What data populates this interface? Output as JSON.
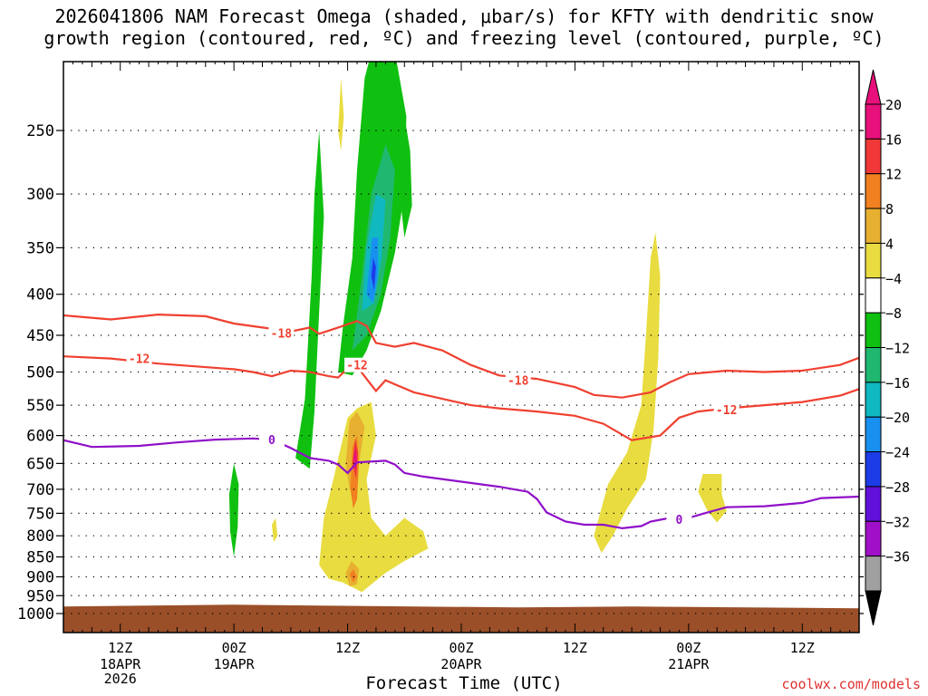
{
  "title": {
    "line1": "2026041806 NAM Forecast Omega (shaded, μbar/s) for KFTY with dendritic snow",
    "line2": "growth region (contoured, red, ºC) and freezing level (contoured, purple, ºC)"
  },
  "credit": "coolwx.com/models",
  "chart_data": {
    "type": "heatmap",
    "xlabel": "Forecast Time (UTC)",
    "ylabel": "",
    "x_unit": "forecast hour (0 = 2026-04-18 06Z)",
    "xlim": [
      0,
      84
    ],
    "ylim_hpa": [
      200,
      1020
    ],
    "y_ticks": [
      250,
      300,
      350,
      400,
      450,
      500,
      550,
      600,
      650,
      700,
      750,
      800,
      850,
      900,
      950,
      1000
    ],
    "x_ticks": [
      {
        "hour": 6,
        "top": "12Z",
        "mid": "18APR",
        "bot": "2026"
      },
      {
        "hour": 18,
        "top": "00Z",
        "mid": "19APR",
        "bot": ""
      },
      {
        "hour": 30,
        "top": "12Z",
        "mid": "",
        "bot": ""
      },
      {
        "hour": 42,
        "top": "00Z",
        "mid": "20APR",
        "bot": ""
      },
      {
        "hour": 54,
        "top": "12Z",
        "mid": "",
        "bot": ""
      },
      {
        "hour": 66,
        "top": "00Z",
        "mid": "21APR",
        "bot": ""
      },
      {
        "hour": 78,
        "top": "12Z",
        "mid": "",
        "bot": ""
      }
    ],
    "colorbar": {
      "labels": [
        "20",
        "16",
        "12",
        "8",
        "4",
        "−4",
        "−8",
        "−12",
        "−16",
        "−20",
        "−24",
        "−28",
        "−32",
        "−36"
      ],
      "colors": [
        "#e8107a",
        "#f03838",
        "#f08020",
        "#e8b030",
        "#e8dc40",
        "#ffffff",
        "#10c010",
        "#20b870",
        "#10b8c0",
        "#1890f0",
        "#1c3ce8",
        "#6010d8",
        "#a010c8",
        "#a0a0a0"
      ],
      "top_arrow_color": "#e8107a",
      "bottom_arrow_color": "#000000"
    },
    "surface_color": "#9a4f28",
    "surface_pressure": 975,
    "contours": [
      {
        "name": "dgz-minus18",
        "color": "#f04030",
        "label": "-18",
        "label_points": [
          [
            23,
            447
          ],
          [
            48,
            512
          ]
        ],
        "points": [
          [
            0,
            425
          ],
          [
            5,
            430
          ],
          [
            10,
            424
          ],
          [
            15,
            426
          ],
          [
            18,
            435
          ],
          [
            21,
            440
          ],
          [
            24,
            445
          ],
          [
            26,
            440
          ],
          [
            27,
            448
          ],
          [
            29,
            440
          ],
          [
            31,
            432
          ],
          [
            32,
            438
          ],
          [
            33,
            460
          ],
          [
            35,
            465
          ],
          [
            37,
            460
          ],
          [
            40,
            470
          ],
          [
            43,
            490
          ],
          [
            46,
            505
          ],
          [
            50,
            510
          ],
          [
            54,
            522
          ],
          [
            56,
            534
          ],
          [
            59,
            538
          ],
          [
            62,
            530
          ],
          [
            64,
            515
          ],
          [
            66,
            503
          ],
          [
            70,
            498
          ],
          [
            74,
            500
          ],
          [
            78,
            498
          ],
          [
            82,
            490
          ],
          [
            84,
            480
          ]
        ]
      },
      {
        "name": "dgz-minus12",
        "color": "#f04030",
        "label": "-12",
        "label_points": [
          [
            8,
            481
          ],
          [
            31,
            490
          ],
          [
            70,
            557
          ]
        ],
        "points": [
          [
            0,
            478
          ],
          [
            5,
            481
          ],
          [
            10,
            488
          ],
          [
            14,
            492
          ],
          [
            18,
            496
          ],
          [
            20,
            500
          ],
          [
            22,
            506
          ],
          [
            24,
            498
          ],
          [
            26,
            500
          ],
          [
            28,
            506
          ],
          [
            29,
            508
          ],
          [
            30,
            495
          ],
          [
            31,
            492
          ],
          [
            32,
            510
          ],
          [
            33,
            528
          ],
          [
            34,
            512
          ],
          [
            35,
            518
          ],
          [
            37,
            530
          ],
          [
            40,
            540
          ],
          [
            43,
            550
          ],
          [
            46,
            555
          ],
          [
            50,
            560
          ],
          [
            54,
            567
          ],
          [
            57,
            580
          ],
          [
            60,
            608
          ],
          [
            63,
            600
          ],
          [
            65,
            570
          ],
          [
            67,
            560
          ],
          [
            70,
            555
          ],
          [
            74,
            550
          ],
          [
            78,
            545
          ],
          [
            82,
            535
          ],
          [
            84,
            525
          ]
        ]
      },
      {
        "name": "freezing-level",
        "color": "#9010c8",
        "label": "0",
        "label_points": [
          [
            22,
            607
          ],
          [
            65,
            763
          ]
        ],
        "points": [
          [
            0,
            608
          ],
          [
            3,
            620
          ],
          [
            8,
            618
          ],
          [
            12,
            612
          ],
          [
            16,
            607
          ],
          [
            20,
            605
          ],
          [
            22,
            607
          ],
          [
            24,
            622
          ],
          [
            26,
            640
          ],
          [
            28,
            645
          ],
          [
            29,
            652
          ],
          [
            30,
            668
          ],
          [
            31,
            648
          ],
          [
            33,
            646
          ],
          [
            34,
            645
          ],
          [
            35,
            652
          ],
          [
            36,
            668
          ],
          [
            38,
            675
          ],
          [
            42,
            685
          ],
          [
            46,
            695
          ],
          [
            49,
            705
          ],
          [
            50,
            720
          ],
          [
            51,
            748
          ],
          [
            53,
            768
          ],
          [
            55,
            775
          ],
          [
            57,
            775
          ],
          [
            59,
            783
          ],
          [
            61,
            778
          ],
          [
            62,
            768
          ],
          [
            64,
            760
          ],
          [
            66,
            760
          ],
          [
            68,
            748
          ],
          [
            70,
            737
          ],
          [
            74,
            735
          ],
          [
            78,
            728
          ],
          [
            80,
            718
          ],
          [
            84,
            715
          ]
        ]
      }
    ],
    "shaded_regions": [
      {
        "name": "ascent-strong-upper",
        "value": -8,
        "color": "#10c010",
        "points": [
          [
            29.0,
            500
          ],
          [
            29.5,
            440
          ],
          [
            30.5,
            360
          ],
          [
            31.0,
            280
          ],
          [
            31.8,
            215
          ],
          [
            33.0,
            190
          ],
          [
            34.5,
            185
          ],
          [
            36.2,
            240
          ],
          [
            36.0,
            300
          ],
          [
            35.0,
            355
          ],
          [
            33.5,
            420
          ],
          [
            32.0,
            470
          ],
          [
            30.5,
            505
          ]
        ]
      },
      {
        "name": "ascent-upper-band",
        "value": -8,
        "color": "#10c010",
        "points": [
          [
            36.0,
            240
          ],
          [
            36.6,
            265
          ],
          [
            36.8,
            310
          ],
          [
            36.0,
            340
          ],
          [
            35.5,
            300
          ]
        ]
      },
      {
        "name": "ascent-left-band",
        "value": -8,
        "color": "#10c010",
        "points": [
          [
            24.5,
            640
          ],
          [
            25.5,
            540
          ],
          [
            26.2,
            380
          ],
          [
            26.5,
            300
          ],
          [
            27.0,
            250
          ],
          [
            27.5,
            320
          ],
          [
            27.0,
            420
          ],
          [
            26.5,
            560
          ],
          [
            26.0,
            660
          ]
        ]
      },
      {
        "name": "ascent-lower-left",
        "value": -8,
        "color": "#10c010",
        "points": [
          [
            17.5,
            710
          ],
          [
            18.0,
            650
          ],
          [
            18.5,
            690
          ],
          [
            18.4,
            780
          ],
          [
            18.0,
            850
          ],
          [
            17.6,
            790
          ]
        ]
      },
      {
        "name": "ascent-low-small",
        "value": -8,
        "color": "#10c010",
        "points": [
          [
            30.8,
            700
          ],
          [
            31.4,
            680
          ],
          [
            31.8,
            720
          ],
          [
            31.4,
            770
          ],
          [
            30.9,
            745
          ]
        ]
      },
      {
        "name": "ascent-mid",
        "value": -12,
        "color": "#20b870",
        "points": [
          [
            30.5,
            470
          ],
          [
            31.5,
            380
          ],
          [
            32.5,
            300
          ],
          [
            34.0,
            260
          ],
          [
            35.0,
            280
          ],
          [
            34.5,
            340
          ],
          [
            33.5,
            400
          ],
          [
            32.0,
            450
          ]
        ]
      },
      {
        "name": "ascent-stronger",
        "value": -16,
        "color": "#10b8c0",
        "points": [
          [
            31.5,
            420
          ],
          [
            32.0,
            350
          ],
          [
            33.0,
            300
          ],
          [
            34.0,
            305
          ],
          [
            33.6,
            360
          ],
          [
            32.8,
            410
          ]
        ]
      },
      {
        "name": "ascent-core",
        "value": -20,
        "color": "#1890f0",
        "points": [
          [
            32.0,
            400
          ],
          [
            32.6,
            340
          ],
          [
            33.2,
            340
          ],
          [
            33.2,
            380
          ],
          [
            32.7,
            410
          ]
        ]
      },
      {
        "name": "ascent-peak",
        "value": -24,
        "color": "#1c3ce8",
        "points": [
          [
            32.5,
            380
          ],
          [
            32.7,
            360
          ],
          [
            33.0,
            370
          ],
          [
            32.8,
            395
          ]
        ]
      },
      {
        "name": "descent-upper-thin",
        "value": 4,
        "color": "#e8dc40",
        "points": [
          [
            29.0,
            250
          ],
          [
            29.3,
            215
          ],
          [
            29.6,
            240
          ],
          [
            29.3,
            265
          ]
        ]
      },
      {
        "name": "descent-low-main",
        "value": 4,
        "color": "#e8dc40",
        "points": [
          [
            27.0,
            870
          ],
          [
            27.5,
            760
          ],
          [
            28.5,
            680
          ],
          [
            30.0,
            570
          ],
          [
            31.0,
            555
          ],
          [
            32.5,
            545
          ],
          [
            33.0,
            600
          ],
          [
            32.0,
            680
          ],
          [
            32.5,
            760
          ],
          [
            34.0,
            800
          ],
          [
            36.0,
            760
          ],
          [
            38.0,
            790
          ],
          [
            38.5,
            830
          ],
          [
            36.0,
            860
          ],
          [
            34.0,
            890
          ],
          [
            32.5,
            920
          ],
          [
            31.5,
            940
          ],
          [
            29.5,
            915
          ],
          [
            28.0,
            905
          ]
        ]
      },
      {
        "name": "descent-low-left-small",
        "value": 4,
        "color": "#e8dc40",
        "points": [
          [
            22.0,
            775
          ],
          [
            22.4,
            760
          ],
          [
            22.6,
            800
          ],
          [
            22.2,
            815
          ]
        ]
      },
      {
        "name": "descent-right-band",
        "value": 4,
        "color": "#e8dc40",
        "points": [
          [
            56.0,
            800
          ],
          [
            57.5,
            690
          ],
          [
            59.5,
            630
          ],
          [
            61.0,
            550
          ],
          [
            61.5,
            450
          ],
          [
            62.0,
            360
          ],
          [
            62.5,
            335
          ],
          [
            63.0,
            380
          ],
          [
            62.8,
            480
          ],
          [
            62.3,
            590
          ],
          [
            61.5,
            680
          ],
          [
            59.5,
            740
          ],
          [
            58.0,
            800
          ],
          [
            56.8,
            840
          ]
        ]
      },
      {
        "name": "descent-right-small",
        "value": 4,
        "color": "#e8dc40",
        "points": [
          [
            67.0,
            705
          ],
          [
            67.5,
            670
          ],
          [
            69.5,
            670
          ],
          [
            69.5,
            710
          ],
          [
            70.0,
            745
          ],
          [
            69.0,
            770
          ],
          [
            68.0,
            745
          ]
        ]
      },
      {
        "name": "descent-moderate",
        "value": 8,
        "color": "#e8b030",
        "points": [
          [
            29.8,
            650
          ],
          [
            30.2,
            575
          ],
          [
            31.0,
            560
          ],
          [
            31.8,
            585
          ],
          [
            31.2,
            650
          ],
          [
            30.8,
            715
          ],
          [
            30.2,
            700
          ]
        ]
      },
      {
        "name": "descent-moderate-low",
        "value": 8,
        "color": "#e8b030",
        "points": [
          [
            29.8,
            890
          ],
          [
            30.4,
            860
          ],
          [
            31.2,
            880
          ],
          [
            31.0,
            920
          ],
          [
            30.2,
            925
          ]
        ]
      },
      {
        "name": "descent-strong",
        "value": 12,
        "color": "#f08020",
        "points": [
          [
            30.3,
            700
          ],
          [
            30.5,
            620
          ],
          [
            31.0,
            600
          ],
          [
            31.2,
            650
          ],
          [
            31.0,
            720
          ],
          [
            30.6,
            740
          ]
        ]
      },
      {
        "name": "descent-strong-low",
        "value": 12,
        "color": "#f08020",
        "points": [
          [
            30.2,
            895
          ],
          [
            30.6,
            880
          ],
          [
            31.0,
            900
          ],
          [
            30.6,
            915
          ]
        ]
      },
      {
        "name": "descent-very-strong",
        "value": 16,
        "color": "#f03838",
        "points": [
          [
            30.5,
            650
          ],
          [
            30.8,
            605
          ],
          [
            31.1,
            630
          ],
          [
            30.9,
            680
          ]
        ]
      },
      {
        "name": "descent-peak",
        "value": 20,
        "color": "#e8107a",
        "points": [
          [
            30.6,
            640
          ],
          [
            30.85,
            620
          ],
          [
            31.0,
            645
          ],
          [
            30.85,
            665
          ]
        ]
      }
    ]
  }
}
